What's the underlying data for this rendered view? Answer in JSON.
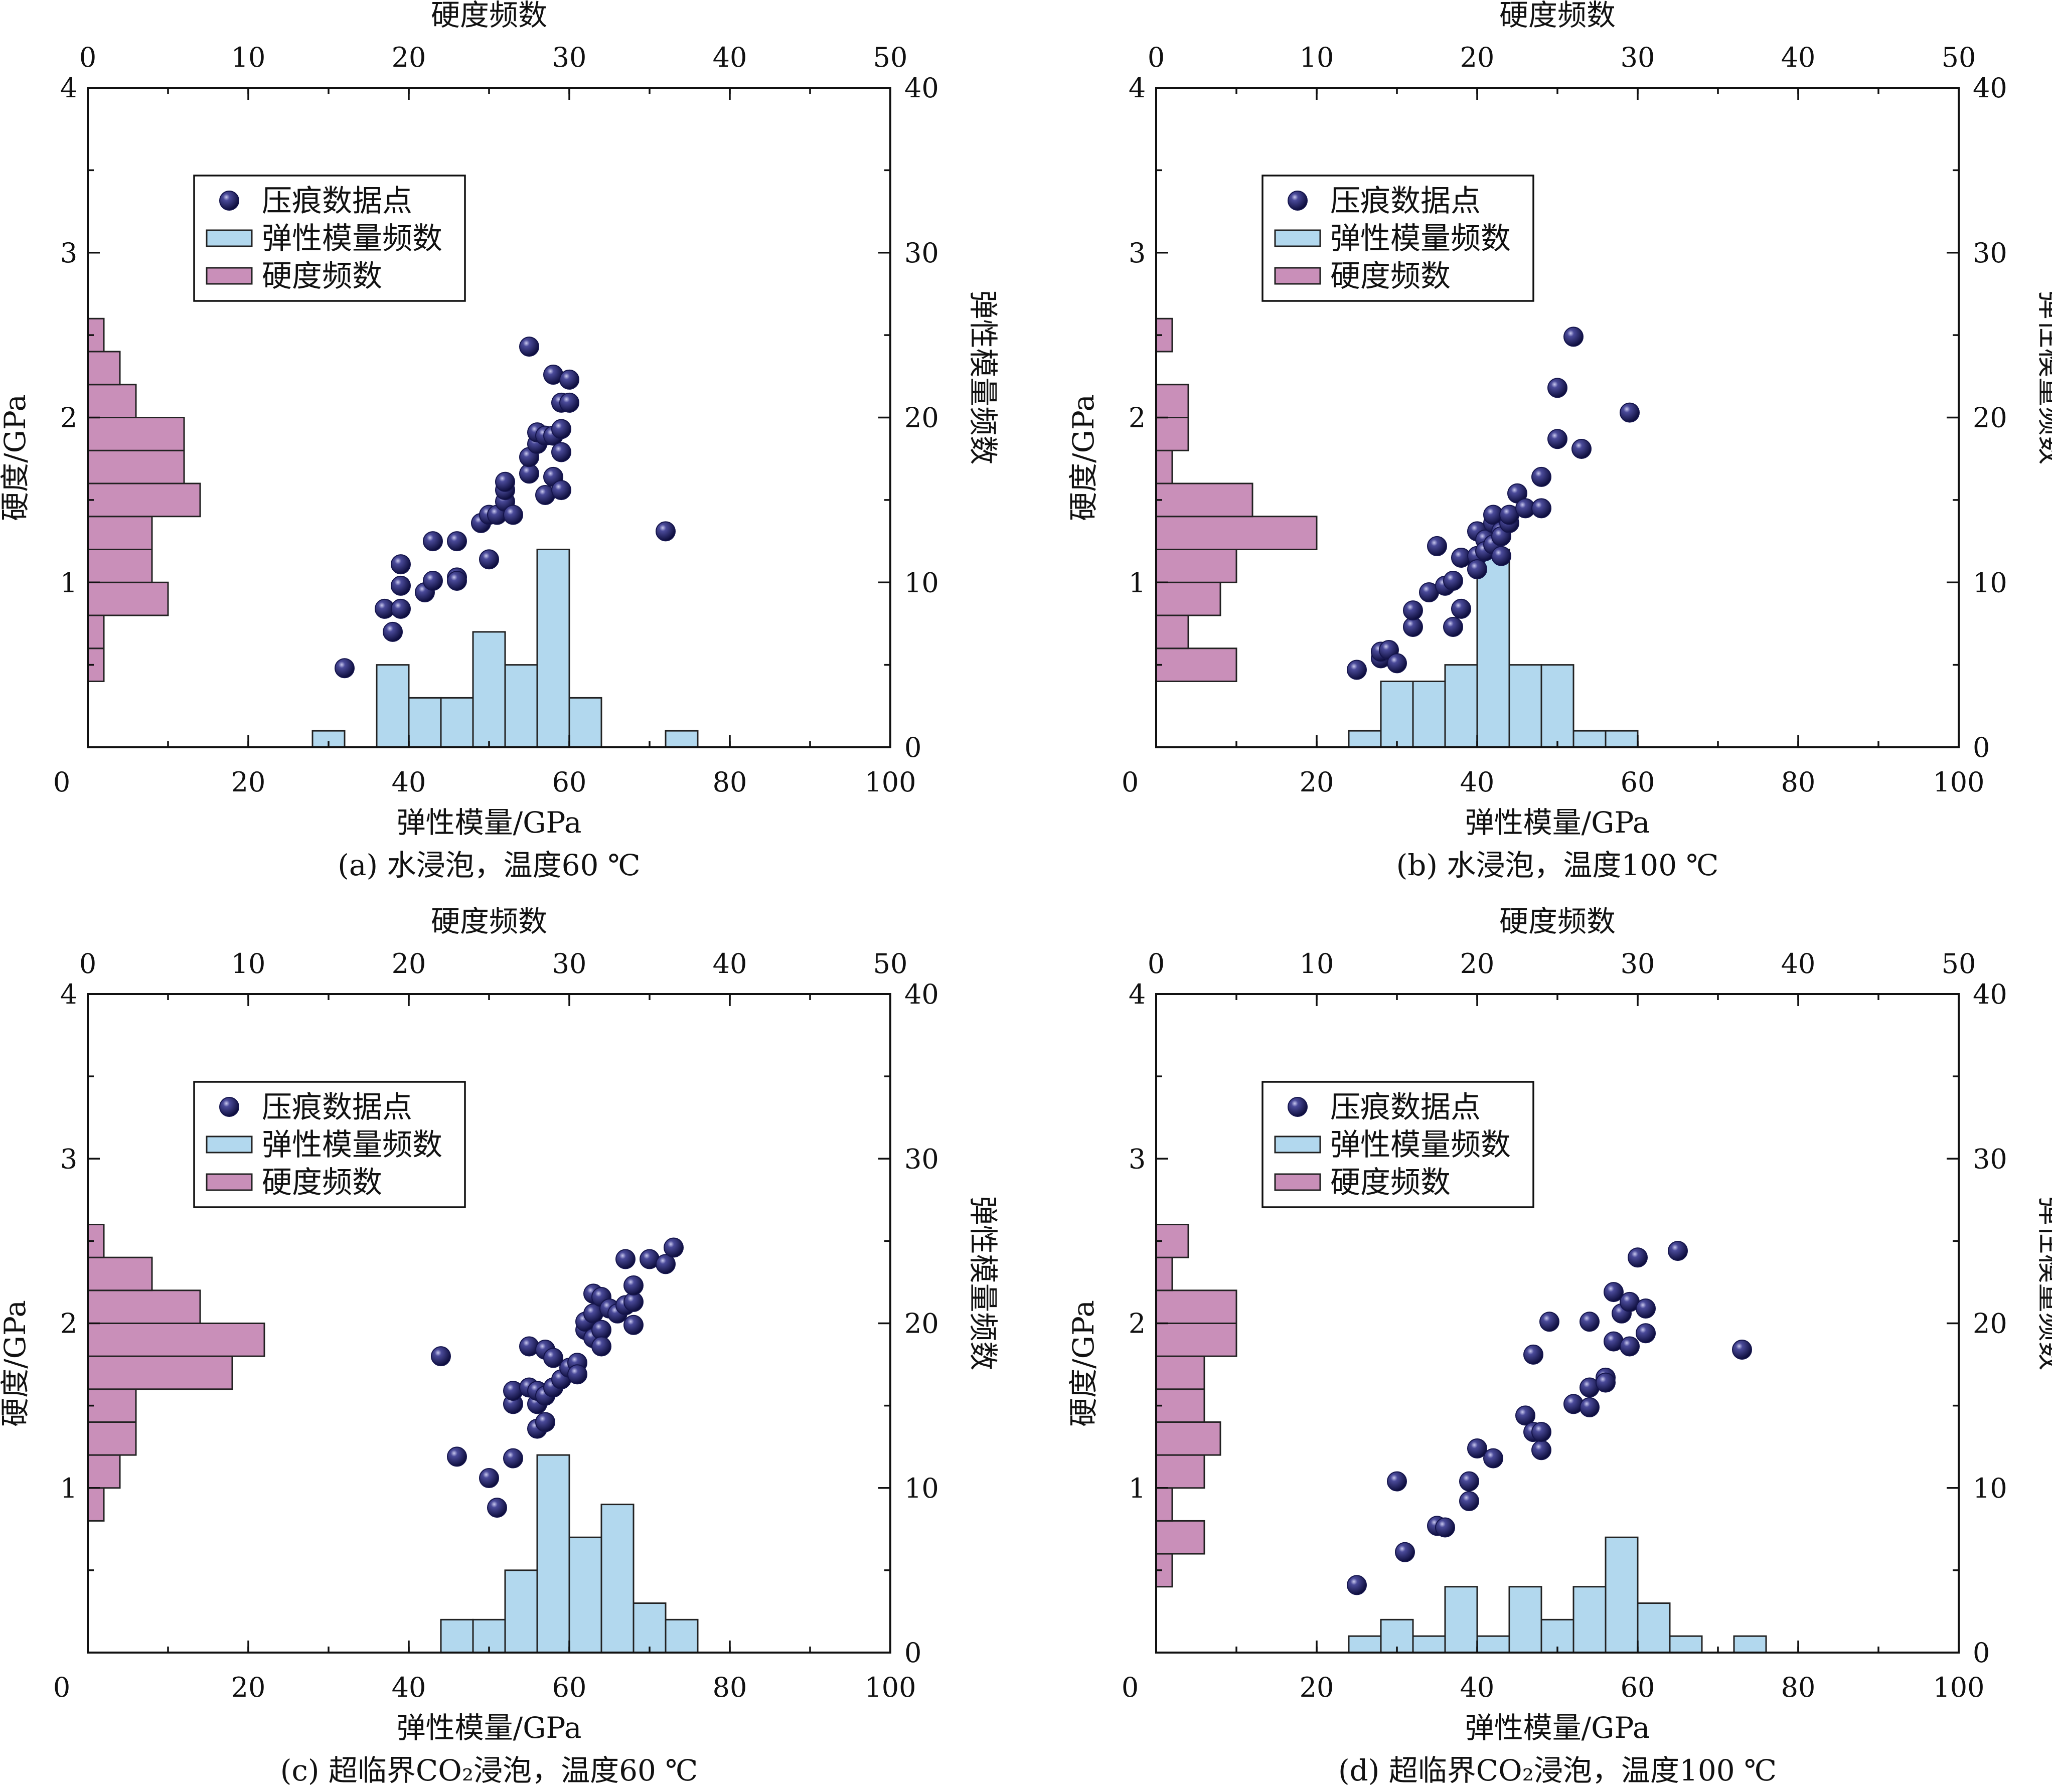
{
  "colors": {
    "modulus_bar": "#b2d8ee",
    "hardness_bar": "#c98fb9",
    "point": "#15154d"
  },
  "chart_data": [
    {
      "type": "scatter",
      "caption": "(a) 水浸泡，温度60 ℃",
      "xlabel": "弹性模量/GPa",
      "ylabel": "硬度/GPa",
      "y2label": "弹性模量频数",
      "x2label": "硬度频数",
      "xlim": [
        0,
        100
      ],
      "ylim": [
        0,
        4
      ],
      "y2lim": [
        0,
        40
      ],
      "x2lim": [
        0,
        50
      ],
      "xticks": [
        "0",
        "20",
        "40",
        "60",
        "80",
        "100"
      ],
      "yticks": [
        "1",
        "2",
        "3",
        "4"
      ],
      "y2ticks": [
        "0",
        "10",
        "20",
        "30",
        "40"
      ],
      "x2ticks": [
        "0",
        "10",
        "20",
        "30",
        "40",
        "50"
      ],
      "legend": [
        "压痕数据点",
        "弹性模量频数",
        "硬度频数"
      ],
      "modulus_bins": [
        [
          28,
          32,
          1
        ],
        [
          36,
          40,
          5
        ],
        [
          40,
          44,
          3
        ],
        [
          44,
          48,
          3
        ],
        [
          48,
          52,
          7
        ],
        [
          52,
          56,
          5
        ],
        [
          56,
          60,
          12
        ],
        [
          60,
          64,
          3
        ],
        [
          72,
          76,
          1
        ]
      ],
      "hardness_bins": [
        [
          0.4,
          0.6,
          1
        ],
        [
          0.6,
          0.8,
          1
        ],
        [
          0.8,
          1.0,
          5
        ],
        [
          1.0,
          1.2,
          4
        ],
        [
          1.2,
          1.4,
          4
        ],
        [
          1.4,
          1.6,
          7
        ],
        [
          1.6,
          1.8,
          6
        ],
        [
          1.8,
          2.0,
          6
        ],
        [
          2.0,
          2.2,
          3
        ],
        [
          2.2,
          2.4,
          2
        ],
        [
          2.4,
          2.6,
          1
        ]
      ],
      "points": [
        [
          32,
          0.48
        ],
        [
          37,
          0.84
        ],
        [
          38,
          0.7
        ],
        [
          39,
          0.84
        ],
        [
          39,
          0.98
        ],
        [
          39,
          1.11
        ],
        [
          42,
          0.94
        ],
        [
          43,
          1.01
        ],
        [
          43,
          1.25
        ],
        [
          46,
          1.03
        ],
        [
          46,
          1.01
        ],
        [
          46,
          1.25
        ],
        [
          49,
          1.36
        ],
        [
          50,
          1.41
        ],
        [
          50,
          1.14
        ],
        [
          51,
          1.41
        ],
        [
          52,
          1.49
        ],
        [
          52,
          1.56
        ],
        [
          52,
          1.61
        ],
        [
          53,
          1.41
        ],
        [
          55,
          1.66
        ],
        [
          55,
          1.76
        ],
        [
          55,
          2.43
        ],
        [
          56,
          1.84
        ],
        [
          56,
          1.91
        ],
        [
          57,
          1.53
        ],
        [
          57,
          1.89
        ],
        [
          58,
          1.64
        ],
        [
          58,
          1.89
        ],
        [
          58,
          2.26
        ],
        [
          59,
          1.56
        ],
        [
          59,
          1.79
        ],
        [
          59,
          1.93
        ],
        [
          59,
          2.09
        ],
        [
          60,
          2.23
        ],
        [
          60,
          2.09
        ],
        [
          72,
          1.31
        ]
      ]
    },
    {
      "type": "scatter",
      "caption": "(b) 水浸泡，温度100 ℃",
      "xlabel": "弹性模量/GPa",
      "ylabel": "硬度/GPa",
      "y2label": "弹性模量频数",
      "x2label": "硬度频数",
      "xlim": [
        0,
        100
      ],
      "ylim": [
        0,
        4
      ],
      "y2lim": [
        0,
        40
      ],
      "x2lim": [
        0,
        50
      ],
      "xticks": [
        "0",
        "20",
        "40",
        "60",
        "80",
        "100"
      ],
      "yticks": [
        "1",
        "2",
        "3",
        "4"
      ],
      "y2ticks": [
        "0",
        "10",
        "20",
        "30",
        "40"
      ],
      "x2ticks": [
        "0",
        "10",
        "20",
        "30",
        "40",
        "50"
      ],
      "legend": [
        "压痕数据点",
        "弹性模量频数",
        "硬度频数"
      ],
      "modulus_bins": [
        [
          24,
          28,
          1
        ],
        [
          28,
          32,
          4
        ],
        [
          32,
          36,
          4
        ],
        [
          36,
          40,
          5
        ],
        [
          40,
          44,
          12
        ],
        [
          44,
          48,
          5
        ],
        [
          48,
          52,
          5
        ],
        [
          52,
          56,
          1
        ],
        [
          56,
          60,
          1
        ]
      ],
      "hardness_bins": [
        [
          0.4,
          0.6,
          5
        ],
        [
          0.6,
          0.8,
          2
        ],
        [
          0.8,
          1.0,
          4
        ],
        [
          1.0,
          1.2,
          5
        ],
        [
          1.2,
          1.4,
          10
        ],
        [
          1.4,
          1.6,
          6
        ],
        [
          1.6,
          1.8,
          1
        ],
        [
          1.8,
          2.0,
          2
        ],
        [
          2.0,
          2.2,
          2
        ],
        [
          2.4,
          2.6,
          1
        ]
      ],
      "points": [
        [
          25,
          0.47
        ],
        [
          28,
          0.54
        ],
        [
          28,
          0.58
        ],
        [
          29,
          0.59
        ],
        [
          30,
          0.51
        ],
        [
          32,
          0.73
        ],
        [
          32,
          0.83
        ],
        [
          34,
          0.94
        ],
        [
          35,
          1.22
        ],
        [
          36,
          0.98
        ],
        [
          37,
          1.01
        ],
        [
          37,
          0.73
        ],
        [
          38,
          0.84
        ],
        [
          38,
          1.15
        ],
        [
          40,
          1.16
        ],
        [
          40,
          1.08
        ],
        [
          40,
          1.31
        ],
        [
          41,
          1.26
        ],
        [
          41,
          1.19
        ],
        [
          42,
          1.23
        ],
        [
          42,
          1.36
        ],
        [
          42,
          1.41
        ],
        [
          43,
          1.16
        ],
        [
          43,
          1.31
        ],
        [
          43,
          1.28
        ],
        [
          44,
          1.36
        ],
        [
          44,
          1.41
        ],
        [
          45,
          1.54
        ],
        [
          46,
          1.45
        ],
        [
          48,
          1.45
        ],
        [
          48,
          1.64
        ],
        [
          50,
          1.87
        ],
        [
          50,
          2.18
        ],
        [
          52,
          2.49
        ],
        [
          53,
          1.81
        ],
        [
          59,
          2.03
        ]
      ]
    },
    {
      "type": "scatter",
      "caption": "(c) 超临界CO₂浸泡，温度60 ℃",
      "xlabel": "弹性模量/GPa",
      "ylabel": "硬度/GPa",
      "y2label": "弹性模量频数",
      "x2label": "硬度频数",
      "xlim": [
        0,
        100
      ],
      "ylim": [
        0,
        4
      ],
      "y2lim": [
        0,
        40
      ],
      "x2lim": [
        0,
        50
      ],
      "xticks": [
        "0",
        "20",
        "40",
        "60",
        "80",
        "100"
      ],
      "yticks": [
        "1",
        "2",
        "3",
        "4"
      ],
      "y2ticks": [
        "0",
        "10",
        "20",
        "30",
        "40"
      ],
      "x2ticks": [
        "0",
        "10",
        "20",
        "30",
        "40",
        "50"
      ],
      "legend": [
        "压痕数据点",
        "弹性模量频数",
        "硬度频数"
      ],
      "modulus_bins": [
        [
          44,
          48,
          2
        ],
        [
          48,
          52,
          2
        ],
        [
          52,
          56,
          5
        ],
        [
          56,
          60,
          12
        ],
        [
          60,
          64,
          7
        ],
        [
          64,
          68,
          9
        ],
        [
          68,
          72,
          3
        ],
        [
          72,
          76,
          2
        ]
      ],
      "hardness_bins": [
        [
          0.8,
          1.0,
          1
        ],
        [
          1.0,
          1.2,
          2
        ],
        [
          1.2,
          1.4,
          3
        ],
        [
          1.4,
          1.6,
          3
        ],
        [
          1.6,
          1.8,
          9
        ],
        [
          1.8,
          2.0,
          11
        ],
        [
          2.0,
          2.2,
          7
        ],
        [
          2.2,
          2.4,
          4
        ],
        [
          2.4,
          2.6,
          1
        ]
      ],
      "points": [
        [
          44,
          1.8
        ],
        [
          46,
          1.19
        ],
        [
          50,
          1.06
        ],
        [
          51,
          0.88
        ],
        [
          53,
          1.18
        ],
        [
          53,
          1.51
        ],
        [
          53,
          1.59
        ],
        [
          55,
          1.61
        ],
        [
          55,
          1.86
        ],
        [
          56,
          1.36
        ],
        [
          56,
          1.51
        ],
        [
          56,
          1.59
        ],
        [
          57,
          1.56
        ],
        [
          57,
          1.84
        ],
        [
          57,
          1.4
        ],
        [
          58,
          1.79
        ],
        [
          58,
          1.61
        ],
        [
          59,
          1.66
        ],
        [
          60,
          1.73
        ],
        [
          61,
          1.76
        ],
        [
          61,
          1.69
        ],
        [
          62,
          1.96
        ],
        [
          62,
          2.01
        ],
        [
          63,
          1.91
        ],
        [
          63,
          2.06
        ],
        [
          63,
          2.18
        ],
        [
          64,
          1.96
        ],
        [
          64,
          1.86
        ],
        [
          64,
          2.16
        ],
        [
          65,
          2.09
        ],
        [
          66,
          2.06
        ],
        [
          67,
          2.39
        ],
        [
          67,
          2.11
        ],
        [
          68,
          1.99
        ],
        [
          68,
          2.13
        ],
        [
          68,
          2.23
        ],
        [
          70,
          2.39
        ],
        [
          72,
          2.36
        ],
        [
          73,
          2.46
        ]
      ]
    },
    {
      "type": "scatter",
      "caption": "(d) 超临界CO₂浸泡，温度100 ℃",
      "xlabel": "弹性模量/GPa",
      "ylabel": "硬度/GPa",
      "y2label": "弹性模量频数",
      "x2label": "硬度频数",
      "xlim": [
        0,
        100
      ],
      "ylim": [
        0,
        4
      ],
      "y2lim": [
        0,
        40
      ],
      "x2lim": [
        0,
        50
      ],
      "xticks": [
        "0",
        "20",
        "40",
        "60",
        "80",
        "100"
      ],
      "yticks": [
        "1",
        "2",
        "3",
        "4"
      ],
      "y2ticks": [
        "0",
        "10",
        "20",
        "30",
        "40"
      ],
      "x2ticks": [
        "0",
        "10",
        "20",
        "30",
        "40",
        "50"
      ],
      "legend": [
        "压痕数据点",
        "弹性模量频数",
        "硬度频数"
      ],
      "modulus_bins": [
        [
          24,
          28,
          1
        ],
        [
          28,
          32,
          2
        ],
        [
          32,
          36,
          1
        ],
        [
          36,
          40,
          4
        ],
        [
          40,
          44,
          1
        ],
        [
          44,
          48,
          4
        ],
        [
          48,
          52,
          2
        ],
        [
          52,
          56,
          4
        ],
        [
          56,
          60,
          7
        ],
        [
          60,
          64,
          3
        ],
        [
          64,
          68,
          1
        ],
        [
          72,
          76,
          1
        ]
      ],
      "hardness_bins": [
        [
          0.4,
          0.6,
          1
        ],
        [
          0.6,
          0.8,
          3
        ],
        [
          0.8,
          1.0,
          1
        ],
        [
          1.0,
          1.2,
          3
        ],
        [
          1.2,
          1.4,
          4
        ],
        [
          1.4,
          1.6,
          3
        ],
        [
          1.6,
          1.8,
          3
        ],
        [
          1.8,
          2.0,
          5
        ],
        [
          2.0,
          2.2,
          5
        ],
        [
          2.2,
          2.4,
          1
        ],
        [
          2.4,
          2.6,
          2
        ]
      ],
      "points": [
        [
          25,
          0.41
        ],
        [
          30,
          1.04
        ],
        [
          31,
          0.61
        ],
        [
          35,
          0.77
        ],
        [
          36,
          0.76
        ],
        [
          39,
          0.92
        ],
        [
          39,
          1.04
        ],
        [
          40,
          1.24
        ],
        [
          42,
          1.18
        ],
        [
          46,
          1.44
        ],
        [
          47,
          1.81
        ],
        [
          47,
          1.34
        ],
        [
          48,
          1.23
        ],
        [
          48,
          1.34
        ],
        [
          49,
          2.01
        ],
        [
          52,
          1.51
        ],
        [
          54,
          1.49
        ],
        [
          54,
          1.61
        ],
        [
          54,
          2.01
        ],
        [
          56,
          1.67
        ],
        [
          56,
          1.64
        ],
        [
          57,
          1.89
        ],
        [
          57,
          2.19
        ],
        [
          58,
          2.06
        ],
        [
          59,
          1.86
        ],
        [
          59,
          2.13
        ],
        [
          60,
          2.4
        ],
        [
          61,
          2.09
        ],
        [
          61,
          1.94
        ],
        [
          65,
          2.44
        ],
        [
          73,
          1.84
        ]
      ]
    }
  ]
}
